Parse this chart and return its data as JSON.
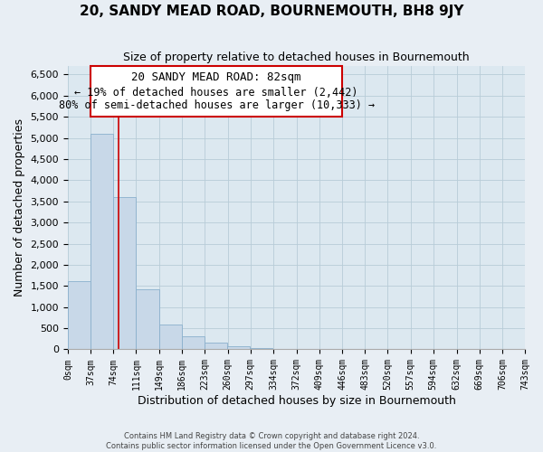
{
  "title": "20, SANDY MEAD ROAD, BOURNEMOUTH, BH8 9JY",
  "subtitle": "Size of property relative to detached houses in Bournemouth",
  "xlabel": "Distribution of detached houses by size in Bournemouth",
  "ylabel": "Number of detached properties",
  "bin_edges": [
    0,
    37,
    74,
    111,
    148,
    185,
    222,
    259,
    296,
    333,
    370,
    407,
    444,
    481,
    518,
    555,
    592,
    629,
    666,
    703,
    740
  ],
  "bar_heights": [
    1620,
    5100,
    3600,
    1420,
    580,
    300,
    150,
    80,
    30,
    20,
    10,
    5,
    0,
    0,
    0,
    0,
    0,
    0,
    0,
    0
  ],
  "bar_color": "#c8d8e8",
  "bar_edge_color": "#8ab0cc",
  "red_line_x": 82,
  "annotation_text_line1": "20 SANDY MEAD ROAD: 82sqm",
  "annotation_text_line2": "← 19% of detached houses are smaller (2,442)",
  "annotation_text_line3": "80% of semi-detached houses are larger (10,333) →",
  "ylim": [
    0,
    6700
  ],
  "xlim": [
    0,
    743
  ],
  "yticks": [
    0,
    500,
    1000,
    1500,
    2000,
    2500,
    3000,
    3500,
    4000,
    4500,
    5000,
    5500,
    6000,
    6500
  ],
  "tick_labels": [
    "0sqm",
    "37sqm",
    "74sqm",
    "111sqm",
    "149sqm",
    "186sqm",
    "223sqm",
    "260sqm",
    "297sqm",
    "334sqm",
    "372sqm",
    "409sqm",
    "446sqm",
    "483sqm",
    "520sqm",
    "557sqm",
    "594sqm",
    "632sqm",
    "669sqm",
    "706sqm",
    "743sqm"
  ],
  "tick_positions": [
    0,
    37,
    74,
    111,
    149,
    186,
    223,
    260,
    297,
    334,
    372,
    409,
    446,
    483,
    520,
    557,
    594,
    632,
    669,
    706,
    743
  ],
  "footer_lines": [
    "Contains HM Land Registry data © Crown copyright and database right 2024.",
    "Contains public sector information licensed under the Open Government Licence v3.0."
  ],
  "background_color": "#e8eef4",
  "plot_background_color": "#dce8f0",
  "grid_color": "#b8ccd8",
  "title_fontsize": 11,
  "subtitle_fontsize": 9,
  "axis_label_fontsize": 9,
  "tick_fontsize": 7,
  "annotation_fontsize": 9,
  "footer_fontsize": 6
}
